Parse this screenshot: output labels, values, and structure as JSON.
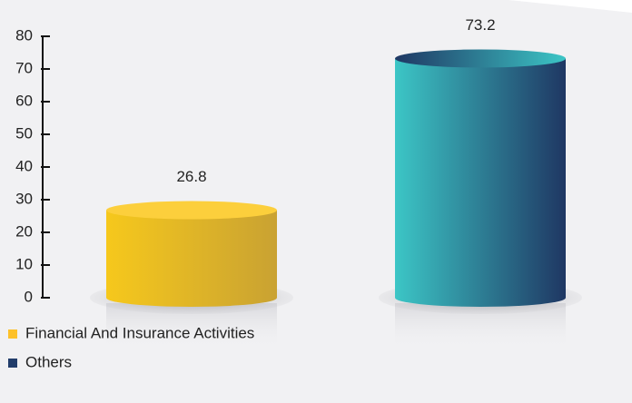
{
  "chart_data": {
    "type": "bar",
    "categories": [
      "Financial And Insurance Activities",
      "Others"
    ],
    "values": [
      26.8,
      73.2
    ],
    "colors": [
      "#fdc12a",
      "#223d6b"
    ],
    "gradients": [
      [
        "#f6c81c",
        "#c9a232"
      ],
      [
        "#3cc6c6",
        "#1f3763"
      ]
    ],
    "ylim": [
      0,
      80
    ],
    "yticks": [
      0,
      10,
      20,
      30,
      40,
      50,
      60,
      70,
      80
    ],
    "legend": "bottom-left"
  }
}
